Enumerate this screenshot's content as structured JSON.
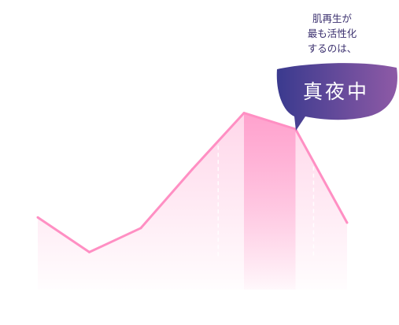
{
  "caption": {
    "lines": [
      "肌再生が",
      "最も活性化",
      "するのは、"
    ],
    "highlight": "真夜中"
  },
  "colors": {
    "line": "#ff8fc3",
    "fill": "#ffb5d8",
    "highlight_band": "#ff9fcc",
    "bubble_start": "#3a3a8e",
    "bubble_end": "#8e5aa6",
    "caption_text": "#3a2f6e"
  },
  "chart_data": {
    "type": "area",
    "x": [
      0,
      1,
      2,
      3,
      4,
      5,
      6
    ],
    "values": [
      27,
      14,
      23,
      45,
      66,
      60,
      25
    ],
    "ylim": [
      0,
      100
    ],
    "highlight_range": [
      4,
      5
    ],
    "dashed_guides_at": [
      3.5,
      5.35
    ],
    "grid": false,
    "legend": "none"
  }
}
